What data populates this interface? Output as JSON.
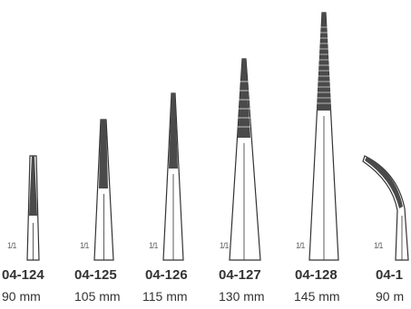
{
  "colors": {
    "text": "#333333",
    "outline": "#333333",
    "serration": "#4a4a4a",
    "background": "#ffffff"
  },
  "instruments": [
    {
      "code": "04-124",
      "length": "90 mm",
      "scale": "1/1",
      "icon": "straight-forceps-icon"
    },
    {
      "code": "04-125",
      "length": "105 mm",
      "scale": "1/1",
      "icon": "straight-forceps-icon"
    },
    {
      "code": "04-126",
      "length": "115 mm",
      "scale": "1/1",
      "icon": "straight-forceps-icon"
    },
    {
      "code": "04-127",
      "length": "130 mm",
      "scale": "1/1",
      "icon": "straight-forceps-icon"
    },
    {
      "code": "04-128",
      "length": "145 mm",
      "scale": "1/1",
      "icon": "straight-forceps-icon"
    },
    {
      "code": "04-1",
      "length": "90 m",
      "scale": "1/1",
      "icon": "curved-forceps-icon"
    }
  ]
}
